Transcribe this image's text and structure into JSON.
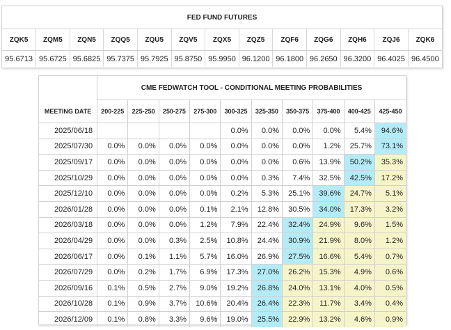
{
  "futures": {
    "title": "FED FUND FUTURES",
    "contracts": [
      "ZQK5",
      "ZQM5",
      "ZQN5",
      "ZQQ5",
      "ZQU5",
      "ZQV5",
      "ZQX5",
      "ZQZ5",
      "ZQF6",
      "ZQG6",
      "ZQH6",
      "ZQJ6",
      "ZQK6"
    ],
    "prices": [
      "95.6713",
      "95.6725",
      "95.6825",
      "95.7375",
      "95.7925",
      "95.8750",
      "95.9950",
      "96.1200",
      "96.1800",
      "96.2650",
      "96.3200",
      "96.4025",
      "96.4500"
    ]
  },
  "fedwatch": {
    "title": "CME FEDWATCH TOOL - CONDITIONAL MEETING PROBABILITIES",
    "date_header": "MEETING DATE",
    "ranges": [
      "200-225",
      "225-250",
      "250-275",
      "275-300",
      "300-325",
      "325-350",
      "350-375",
      "375-400",
      "400-425",
      "425-450"
    ],
    "rows": [
      {
        "date": "2025/06/18",
        "cells": [
          "",
          "",
          "",
          "",
          "0.0%",
          "0.0%",
          "0.0%",
          "0.0%",
          "5.4%",
          "94.6%"
        ]
      },
      {
        "date": "2025/07/30",
        "cells": [
          "0.0%",
          "0.0%",
          "0.0%",
          "0.0%",
          "0.0%",
          "0.0%",
          "0.0%",
          "1.2%",
          "25.7%",
          "73.1%"
        ]
      },
      {
        "date": "2025/09/17",
        "cells": [
          "0.0%",
          "0.0%",
          "0.0%",
          "0.0%",
          "0.0%",
          "0.0%",
          "0.6%",
          "13.9%",
          "50.2%",
          "35.3%"
        ]
      },
      {
        "date": "2025/10/29",
        "cells": [
          "0.0%",
          "0.0%",
          "0.0%",
          "0.0%",
          "0.0%",
          "0.3%",
          "7.4%",
          "32.5%",
          "42.5%",
          "17.2%"
        ]
      },
      {
        "date": "2025/12/10",
        "cells": [
          "0.0%",
          "0.0%",
          "0.0%",
          "0.0%",
          "0.2%",
          "5.3%",
          "25.1%",
          "39.6%",
          "24.7%",
          "5.1%"
        ]
      },
      {
        "date": "2026/01/28",
        "cells": [
          "0.0%",
          "0.0%",
          "0.0%",
          "0.1%",
          "2.1%",
          "12.8%",
          "30.5%",
          "34.0%",
          "17.3%",
          "3.2%"
        ]
      },
      {
        "date": "2026/03/18",
        "cells": [
          "0.0%",
          "0.0%",
          "0.0%",
          "1.2%",
          "7.9%",
          "22.4%",
          "32.4%",
          "24.9%",
          "9.6%",
          "1.5%"
        ]
      },
      {
        "date": "2026/04/29",
        "cells": [
          "0.0%",
          "0.0%",
          "0.3%",
          "2.5%",
          "10.8%",
          "24.4%",
          "30.9%",
          "21.9%",
          "8.0%",
          "1.2%"
        ]
      },
      {
        "date": "2026/06/17",
        "cells": [
          "0.0%",
          "0.1%",
          "1.1%",
          "5.7%",
          "16.0%",
          "26.9%",
          "27.5%",
          "16.6%",
          "5.4%",
          "0.7%"
        ]
      },
      {
        "date": "2026/07/29",
        "cells": [
          "0.0%",
          "0.2%",
          "1.7%",
          "6.9%",
          "17.3%",
          "27.0%",
          "26.2%",
          "15.3%",
          "4.9%",
          "0.6%"
        ]
      },
      {
        "date": "2026/09/16",
        "cells": [
          "0.1%",
          "0.5%",
          "2.7%",
          "9.0%",
          "19.2%",
          "26.8%",
          "24.0%",
          "13.1%",
          "4.0%",
          "0.5%"
        ]
      },
      {
        "date": "2026/10/28",
        "cells": [
          "0.1%",
          "0.9%",
          "3.7%",
          "10.6%",
          "20.4%",
          "26.4%",
          "22.3%",
          "11.7%",
          "3.4%",
          "0.4%"
        ]
      },
      {
        "date": "2026/12/09",
        "cells": [
          "0.1%",
          "0.8%",
          "3.3%",
          "9.6%",
          "19.0%",
          "25.5%",
          "22.9%",
          "13.2%",
          "4.6%",
          "0.9%"
        ]
      }
    ],
    "highlights": [
      [
        "",
        "",
        "",
        "",
        "",
        "",
        "",
        "",
        "",
        "cyan"
      ],
      [
        "",
        "",
        "",
        "",
        "",
        "",
        "",
        "",
        "",
        "cyan"
      ],
      [
        "",
        "",
        "",
        "",
        "",
        "",
        "",
        "",
        "cyan",
        "yellow"
      ],
      [
        "",
        "",
        "",
        "",
        "",
        "",
        "",
        "",
        "cyan",
        "yellow"
      ],
      [
        "",
        "",
        "",
        "",
        "",
        "",
        "",
        "cyan",
        "yellow",
        "yellow"
      ],
      [
        "",
        "",
        "",
        "",
        "",
        "",
        "",
        "cyan",
        "yellow",
        "yellow"
      ],
      [
        "",
        "",
        "",
        "",
        "",
        "",
        "cyan",
        "yellow",
        "yellow",
        "yellow"
      ],
      [
        "",
        "",
        "",
        "",
        "",
        "",
        "cyan",
        "yellow",
        "yellow",
        "yellow"
      ],
      [
        "",
        "",
        "",
        "",
        "",
        "",
        "cyan",
        "yellow",
        "yellow",
        "yellow"
      ],
      [
        "",
        "",
        "",
        "",
        "",
        "cyan",
        "yellow",
        "yellow",
        "yellow",
        "yellow"
      ],
      [
        "",
        "",
        "",
        "",
        "",
        "cyan",
        "yellow",
        "yellow",
        "yellow",
        "yellow"
      ],
      [
        "",
        "",
        "",
        "",
        "",
        "cyan",
        "yellow",
        "yellow",
        "yellow",
        "yellow"
      ],
      [
        "",
        "",
        "",
        "",
        "",
        "cyan",
        "yellow",
        "yellow",
        "yellow",
        "yellow"
      ]
    ],
    "colors": {
      "cyan": "#b3ecf7",
      "yellow": "#f6f5c9"
    }
  }
}
